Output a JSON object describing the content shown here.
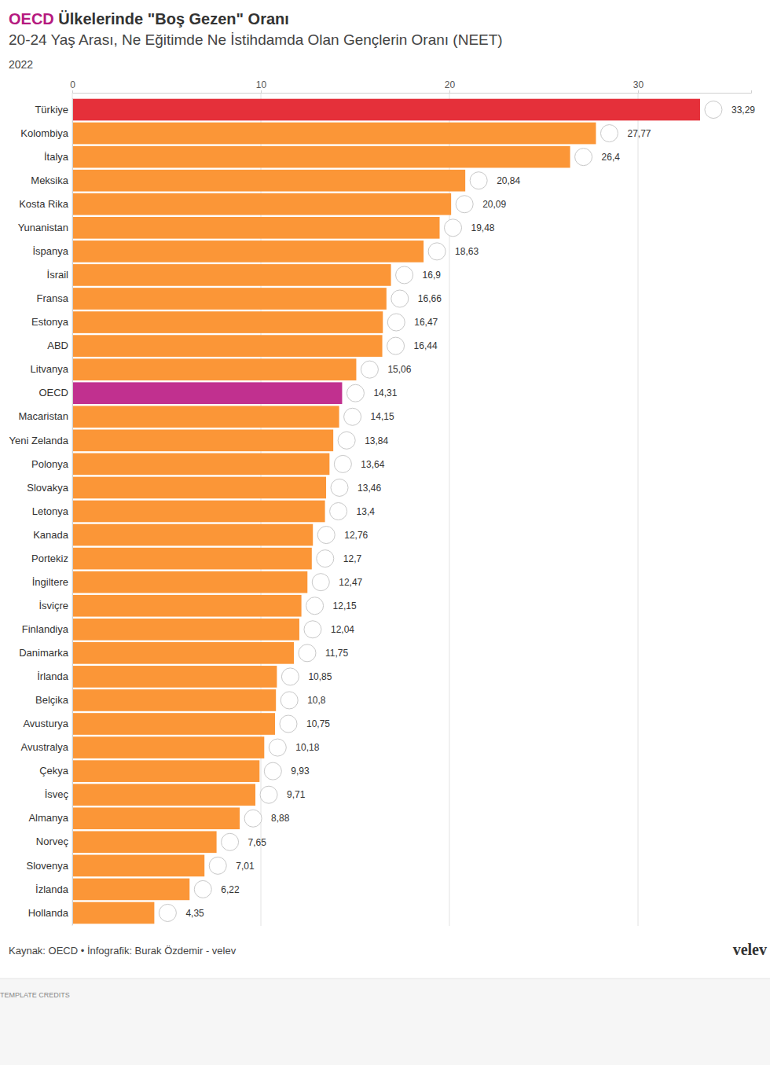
{
  "chart_data": {
    "type": "bar",
    "orientation": "horizontal",
    "title": "OECD Ülkelerinde \"Boş Gezen\" Oranı",
    "subtitle": "20-24 Yaş Arası, Ne Eğitimde Ne İstihdamda Olan Gençlerin Oranı (NEET)",
    "annotations": [
      "2022",
      "Kaynak: OECD • İnfografik: Burak Özdemir - velev",
      "velev",
      "TEMPLATE CREDITS"
    ],
    "categories": [
      "Türkiye",
      "Kolombiya",
      "İtalya",
      "Meksika",
      "Kosta Rika",
      "Yunanistan",
      "İspanya",
      "İsrail",
      "Fransa",
      "Estonya",
      "ABD",
      "Litvanya",
      "OECD",
      "Macaristan",
      "Yeni Zelanda",
      "Polonya",
      "Slovakya",
      "Letonya",
      "Kanada",
      "Portekiz",
      "İngiltere",
      "İsviçre",
      "Finlandiya",
      "Danimarka",
      "İrlanda",
      "Belçika",
      "Avusturya",
      "Avustralya",
      "Çekya",
      "İsveç",
      "Almanya",
      "Norveç",
      "Slovenya",
      "İzlanda",
      "Hollanda"
    ],
    "values": [
      33.29,
      27.77,
      26.4,
      20.84,
      20.09,
      19.48,
      18.63,
      16.9,
      16.66,
      16.47,
      16.44,
      15.06,
      14.31,
      14.15,
      13.84,
      13.64,
      13.46,
      13.4,
      12.76,
      12.7,
      12.47,
      12.15,
      12.04,
      11.75,
      10.85,
      10.8,
      10.75,
      10.18,
      9.93,
      9.71,
      8.88,
      7.65,
      7.01,
      6.22,
      4.35
    ],
    "value_labels": [
      "33,29",
      "27,77",
      "26,4",
      "20,84",
      "20,09",
      "19,48",
      "18,63",
      "16,9",
      "16,66",
      "16,47",
      "16,44",
      "15,06",
      "14,31",
      "14,15",
      "13,84",
      "13,64",
      "13,46",
      "13,4",
      "12,76",
      "12,7",
      "12,47",
      "12,15",
      "12,04",
      "11,75",
      "10,85",
      "10,8",
      "10,75",
      "10,18",
      "9,93",
      "9,71",
      "8,88",
      "7,65",
      "7,01",
      "6,22",
      "4,35"
    ],
    "colors": [
      "#e5303a",
      "#fb9637",
      "#fb9637",
      "#fb9637",
      "#fb9637",
      "#fb9637",
      "#fb9637",
      "#fb9637",
      "#fb9637",
      "#fb9637",
      "#fb9637",
      "#fb9637",
      "#c1308f",
      "#fb9637",
      "#fb9637",
      "#fb9637",
      "#fb9637",
      "#fb9637",
      "#fb9637",
      "#fb9637",
      "#fb9637",
      "#fb9637",
      "#fb9637",
      "#fb9637",
      "#fb9637",
      "#fb9637",
      "#fb9637",
      "#fb9637",
      "#fb9637",
      "#fb9637",
      "#fb9637",
      "#fb9637",
      "#fb9637",
      "#fb9637",
      "#fb9637"
    ],
    "xlim": [
      0,
      36
    ],
    "xticks": [
      0,
      10,
      20,
      30
    ],
    "grid": true,
    "data_labels": true
  }
}
